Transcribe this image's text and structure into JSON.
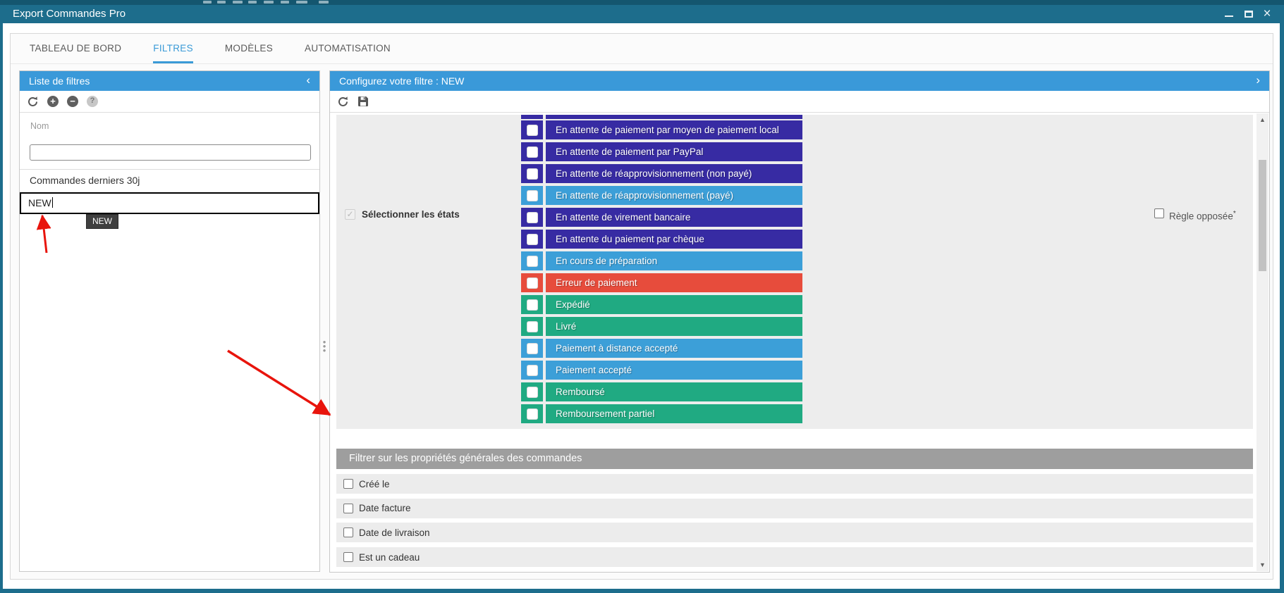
{
  "window": {
    "title": "Export Commandes Pro"
  },
  "tabs": {
    "items": [
      {
        "label": "TABLEAU DE BORD",
        "active": false
      },
      {
        "label": "FILTRES",
        "active": true
      },
      {
        "label": "MODÈLES",
        "active": false
      },
      {
        "label": "AUTOMATISATION",
        "active": false
      }
    ]
  },
  "left_panel": {
    "title": "Liste de filtres",
    "collapse_glyph": "‹",
    "toolbar": {
      "refresh": "refresh",
      "add": "+",
      "remove": "−",
      "help": "?"
    },
    "name_label": "Nom",
    "name_input_value": "",
    "filter_items": [
      "Commandes derniers 30j"
    ],
    "edit_input_value": "NEW",
    "tooltip_text": "NEW"
  },
  "right_panel": {
    "title": "Configurez votre filtre : NEW",
    "expand_glyph": "›"
  },
  "states_section": {
    "label": "Sélectionner les états",
    "opposite_rule_label": "Règle opposée",
    "opposite_rule_asterisk": "*",
    "rows": [
      {
        "label": "",
        "color": "purple",
        "partial": true
      },
      {
        "label": "En attente de paiement par moyen de paiement local",
        "color": "purple"
      },
      {
        "label": "En attente de paiement par PayPal",
        "color": "purple"
      },
      {
        "label": "En attente de réapprovisionnement (non payé)",
        "color": "purple"
      },
      {
        "label": "En attente de réapprovisionnement (payé)",
        "color": "blue"
      },
      {
        "label": "En attente de virement bancaire",
        "color": "purple"
      },
      {
        "label": "En attente du paiement par chèque",
        "color": "purple"
      },
      {
        "label": "En cours de préparation",
        "color": "blue"
      },
      {
        "label": "Erreur de paiement",
        "color": "red"
      },
      {
        "label": "Expédié",
        "color": "green"
      },
      {
        "label": "Livré",
        "color": "green"
      },
      {
        "label": "Paiement à distance accepté",
        "color": "blue"
      },
      {
        "label": "Paiement accepté",
        "color": "blue"
      },
      {
        "label": "Remboursé",
        "color": "green"
      },
      {
        "label": "Remboursement partiel",
        "color": "green"
      }
    ]
  },
  "properties_section": {
    "header": "Filtrer sur les propriétés générales des commandes",
    "rows": [
      "Créé le",
      "Date facture",
      "Date de livraison",
      "Est un cadeau"
    ]
  },
  "colors": {
    "window_chrome": "#1d6d8c",
    "panel_header_blue": "#3a99d9",
    "active_tab_blue": "#3a9ad7",
    "state_purple": "#372ba3",
    "state_blue": "#3c9fd8",
    "state_red": "#e74c3c",
    "state_green": "#20aa82",
    "section_header_gray": "#9e9e9e",
    "annotation_red": "#e8140c"
  }
}
